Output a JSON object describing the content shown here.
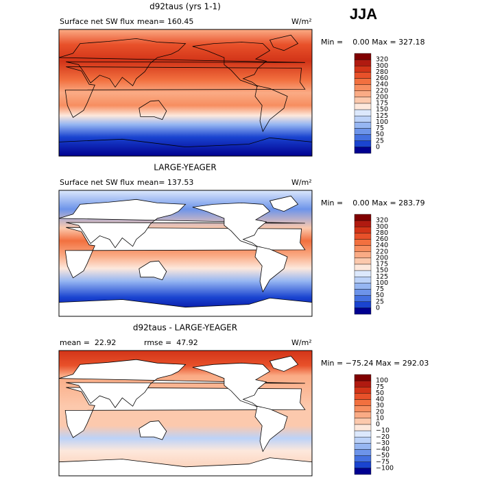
{
  "header": {
    "season": "JJA"
  },
  "panels": [
    {
      "title": "d92taus (yrs 1-1)",
      "left": "Surface net SW flux",
      "middle": "mean= 160.45",
      "units": "W/m²",
      "range": "Min =    0.00 Max = 327.18",
      "colorbar": {
        "labels": [
          "320",
          "300",
          "280",
          "260",
          "240",
          "220",
          "200",
          "175",
          "150",
          "125",
          "100",
          "75",
          "50",
          "25",
          "0"
        ],
        "colors": [
          "#800000",
          "#b01a10",
          "#d23418",
          "#e8512a",
          "#f2703f",
          "#f78e60",
          "#faab85",
          "#fcc9ad",
          "#fde8dc",
          "#dce8fc",
          "#bcd2f8",
          "#96b6f2",
          "#6d94ea",
          "#4470e0",
          "#1a44d0",
          "#000090"
        ]
      }
    },
    {
      "title": "LARGE-YEAGER",
      "left": "Surface net SW flux",
      "middle": "mean= 137.53",
      "units": "W/m²",
      "range": "Min =    0.00 Max = 283.79",
      "colorbar": {
        "labels": [
          "320",
          "300",
          "280",
          "260",
          "240",
          "220",
          "200",
          "175",
          "150",
          "125",
          "100",
          "75",
          "50",
          "25",
          "0"
        ],
        "colors": [
          "#800000",
          "#b01a10",
          "#d23418",
          "#e8512a",
          "#f2703f",
          "#f78e60",
          "#faab85",
          "#fcc9ad",
          "#fde8dc",
          "#dce8fc",
          "#bcd2f8",
          "#96b6f2",
          "#6d94ea",
          "#4470e0",
          "#1a44d0",
          "#000090"
        ]
      }
    },
    {
      "title": "d92taus - LARGE-YEAGER",
      "left": "mean =  22.92",
      "middle": "rmse =  47.92",
      "units": "W/m²",
      "range": "Min = −75.24 Max = 292.03",
      "colorbar": {
        "labels": [
          "100",
          "75",
          "50",
          "40",
          "30",
          "20",
          "10",
          "0",
          "−10",
          "−20",
          "−30",
          "−40",
          "−50",
          "−75",
          "−100"
        ],
        "colors": [
          "#800000",
          "#b01a10",
          "#d23418",
          "#e8512a",
          "#f2703f",
          "#f78e60",
          "#faab85",
          "#fcc9ad",
          "#fde8dc",
          "#dce8fc",
          "#bcd2f8",
          "#96b6f2",
          "#6d94ea",
          "#4470e0",
          "#1a44d0",
          "#000090"
        ]
      }
    }
  ]
}
